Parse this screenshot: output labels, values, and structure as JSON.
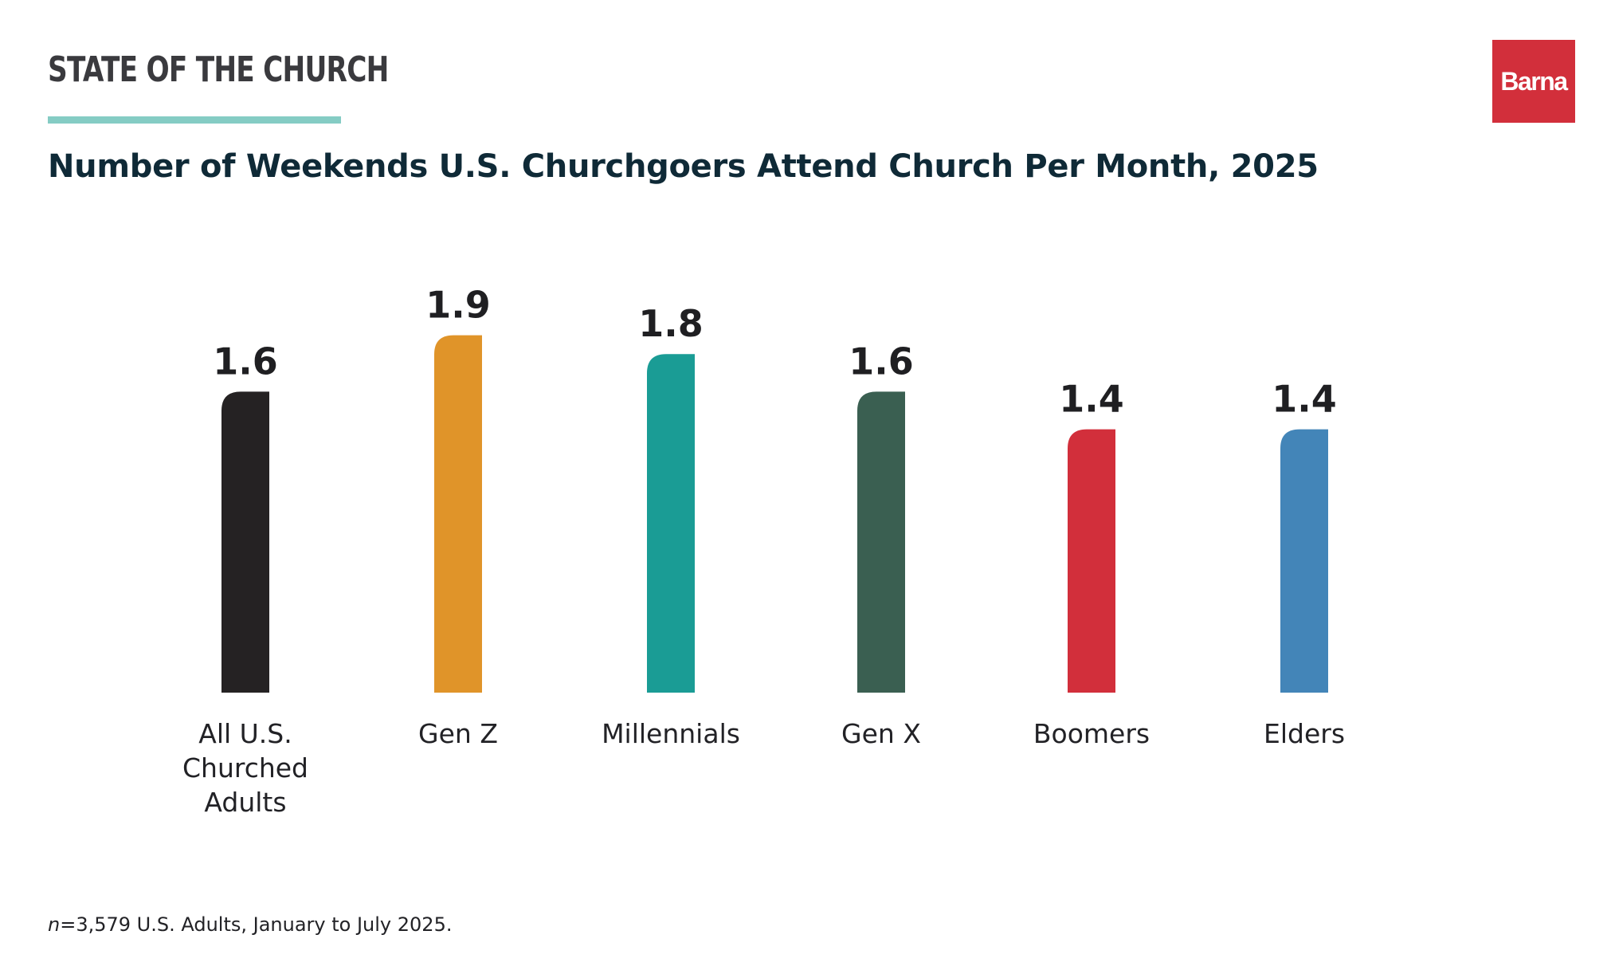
{
  "header": {
    "brand_title": "STATE OF THE CHURCH",
    "logo_text": "Barna",
    "accent_color": "#85ccc4",
    "logo_color": "#d22f3b"
  },
  "chart_data": {
    "type": "bar",
    "title": "Number of Weekends U.S. Churchgoers Attend Church Per Month, 2025",
    "categories": [
      [
        "All U.S.",
        "Churched",
        "Adults"
      ],
      [
        "Gen Z"
      ],
      [
        "Millennials"
      ],
      [
        "Gen X"
      ],
      [
        "Boomers"
      ],
      [
        "Elders"
      ]
    ],
    "values": [
      1.6,
      1.9,
      1.8,
      1.6,
      1.4,
      1.4
    ],
    "value_labels": [
      "1.6",
      "1.9",
      "1.8",
      "1.6",
      "1.4",
      "1.4"
    ],
    "colors": [
      "#252223",
      "#e09429",
      "#1a9c95",
      "#3a5f51",
      "#d22f3b",
      "#4385b8"
    ],
    "xlabel": "",
    "ylabel": "",
    "ylim": [
      0,
      2
    ],
    "grid": false,
    "legend": "none"
  },
  "footnote": {
    "n_label": "n",
    "text": "=3,579 U.S. Adults, January to July 2025."
  }
}
